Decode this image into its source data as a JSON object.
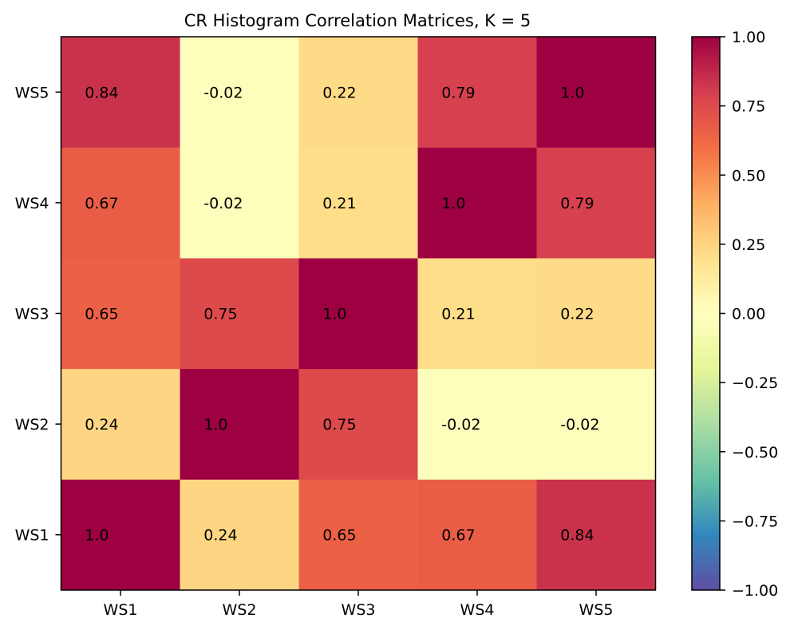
{
  "chart_data": {
    "type": "heatmap",
    "title": "CR Histogram Correlation Matrices, K = 5",
    "xlabel": "",
    "ylabel": "",
    "x_categories": [
      "WS1",
      "WS2",
      "WS3",
      "WS4",
      "WS5"
    ],
    "y_categories": [
      "WS1",
      "WS2",
      "WS3",
      "WS4",
      "WS5"
    ],
    "y_axis_order": "bottom-to-top",
    "values": [
      [
        1.0,
        0.24,
        0.65,
        0.67,
        0.84
      ],
      [
        0.24,
        1.0,
        0.75,
        -0.02,
        -0.02
      ],
      [
        0.65,
        0.75,
        1.0,
        0.21,
        0.22
      ],
      [
        0.67,
        -0.02,
        0.21,
        1.0,
        0.79
      ],
      [
        0.84,
        -0.02,
        0.22,
        0.79,
        1.0
      ]
    ],
    "cell_labels": [
      [
        "1.0",
        "0.24",
        "0.65",
        "0.67",
        "0.84"
      ],
      [
        "0.24",
        "1.0",
        "0.75",
        "-0.02",
        "-0.02"
      ],
      [
        "0.65",
        "0.75",
        "1.0",
        "0.21",
        "0.22"
      ],
      [
        "0.67",
        "-0.02",
        "0.21",
        "1.0",
        "0.79"
      ],
      [
        "0.84",
        "-0.02",
        "0.22",
        "0.79",
        "1.0"
      ]
    ],
    "colormap": "Spectral_r",
    "value_range": [
      -1.0,
      1.0
    ],
    "colorbar": {
      "ticks": [
        1.0,
        0.75,
        0.5,
        0.25,
        0.0,
        -0.25,
        -0.5,
        -0.75,
        -1.0
      ],
      "tick_labels": [
        "1.00",
        "0.75",
        "0.50",
        "0.25",
        "0.00",
        "−0.25",
        "−0.50",
        "−0.75",
        "−1.00"
      ]
    },
    "colors": {
      "low": "#5e4fa2",
      "high": "#9e0142"
    },
    "grid": false,
    "legend": "colorbar-right"
  }
}
